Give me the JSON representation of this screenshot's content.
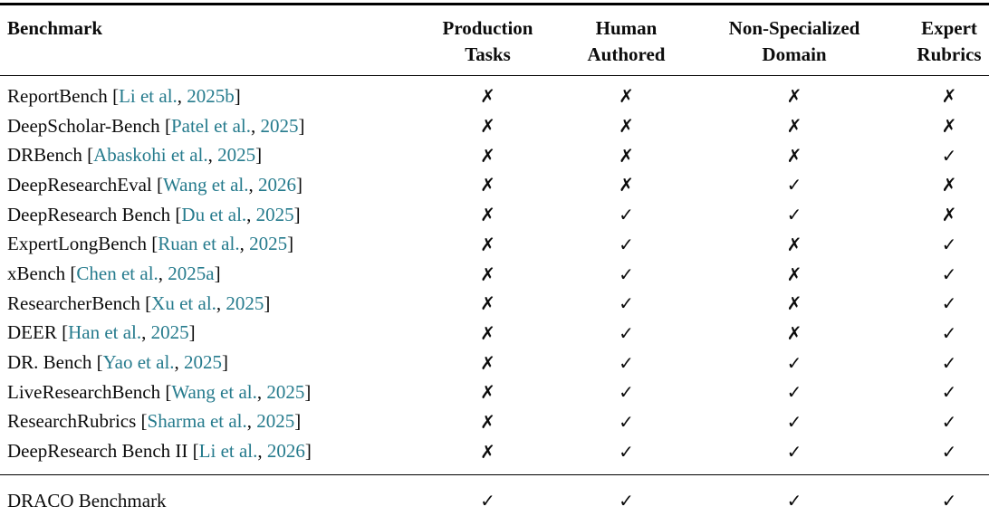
{
  "colors": {
    "citation": "#267b8d",
    "text": "#0c0c0c",
    "rule": "#000000",
    "background": "#ffffff"
  },
  "glyphs": {
    "check": "✓",
    "cross": "✗"
  },
  "citation_format": {
    "bracket_open": "[",
    "separator": ", ",
    "bracket_close": "]"
  },
  "header": {
    "benchmark": "Benchmark",
    "columns": [
      {
        "line1": "Production",
        "line2": "Tasks"
      },
      {
        "line1": "Human",
        "line2": "Authored"
      },
      {
        "line1": "Non-Specialized",
        "line2": "Domain"
      },
      {
        "line1": "Expert",
        "line2": "Rubrics"
      }
    ]
  },
  "rows": [
    {
      "name": "ReportBench",
      "citation": {
        "author": "Li et al.",
        "year": "2025b"
      },
      "marks": [
        false,
        false,
        false,
        false
      ]
    },
    {
      "name": "DeepScholar-Bench",
      "citation": {
        "author": "Patel et al.",
        "year": "2025"
      },
      "marks": [
        false,
        false,
        false,
        false
      ]
    },
    {
      "name": "DRBench",
      "citation": {
        "author": "Abaskohi et al.",
        "year": "2025"
      },
      "marks": [
        false,
        false,
        false,
        true
      ]
    },
    {
      "name": "DeepResearchEval",
      "citation": {
        "author": "Wang et al.",
        "year": "2026"
      },
      "marks": [
        false,
        false,
        true,
        false
      ]
    },
    {
      "name": "DeepResearch Bench",
      "citation": {
        "author": "Du et al.",
        "year": "2025"
      },
      "marks": [
        false,
        true,
        true,
        false
      ]
    },
    {
      "name": "ExpertLongBench",
      "citation": {
        "author": "Ruan et al.",
        "year": "2025"
      },
      "marks": [
        false,
        true,
        false,
        true
      ]
    },
    {
      "name": "xBench",
      "citation": {
        "author": "Chen et al.",
        "year": "2025a"
      },
      "marks": [
        false,
        true,
        false,
        true
      ]
    },
    {
      "name": "ResearcherBench",
      "citation": {
        "author": "Xu et al.",
        "year": "2025"
      },
      "marks": [
        false,
        true,
        false,
        true
      ]
    },
    {
      "name": "DEER",
      "citation": {
        "author": "Han et al.",
        "year": "2025"
      },
      "marks": [
        false,
        true,
        false,
        true
      ]
    },
    {
      "name": "DR. Bench",
      "citation": {
        "author": "Yao et al.",
        "year": "2025"
      },
      "marks": [
        false,
        true,
        true,
        true
      ]
    },
    {
      "name": "LiveResearchBench",
      "citation": {
        "author": "Wang et al.",
        "year": "2025"
      },
      "marks": [
        false,
        true,
        true,
        true
      ]
    },
    {
      "name": "ResearchRubrics",
      "citation": {
        "author": "Sharma et al.",
        "year": "2025"
      },
      "marks": [
        false,
        true,
        true,
        true
      ]
    },
    {
      "name": "DeepResearch Bench II",
      "citation": {
        "author": "Li et al.",
        "year": "2026"
      },
      "marks": [
        false,
        true,
        true,
        true
      ]
    }
  ],
  "summary_row": {
    "name": "DRACO Benchmark",
    "marks": [
      true,
      true,
      true,
      true
    ]
  }
}
